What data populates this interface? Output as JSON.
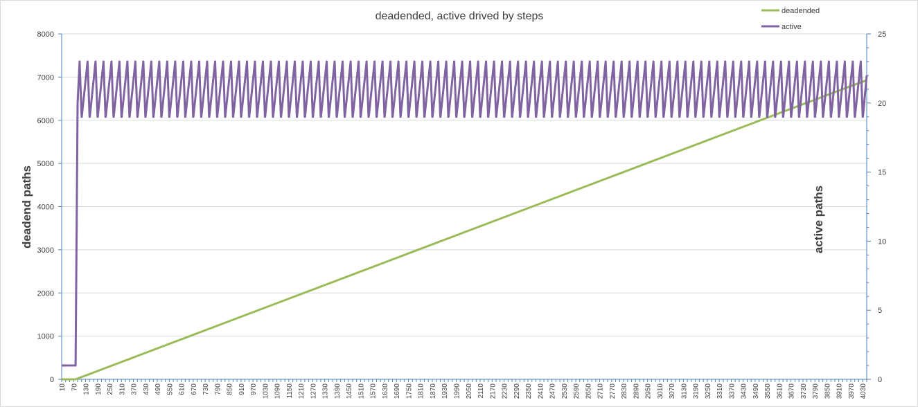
{
  "chart_data": {
    "type": "line",
    "title": "deadended, active drived by steps",
    "ylabel": "deadend paths",
    "y2label": "active paths",
    "ylim": [
      0,
      8000
    ],
    "y2lim": [
      0,
      25
    ],
    "yticks": [
      "0",
      "1000",
      "2000",
      "3000",
      "4000",
      "5000",
      "6000",
      "7000",
      "8000"
    ],
    "y2ticks": [
      "0",
      "5",
      "10",
      "15",
      "20",
      "25"
    ],
    "x_start": 10,
    "x_end": 4050,
    "x_step": 10,
    "x_tick_labels": [
      "10",
      "70",
      "130",
      "190",
      "250",
      "310",
      "370",
      "430",
      "490",
      "550",
      "610",
      "670",
      "730",
      "790",
      "850",
      "910",
      "970",
      "1030",
      "1090",
      "1150",
      "1210",
      "1270",
      "1330",
      "1390",
      "1450",
      "1510",
      "1570",
      "1630",
      "1690",
      "1750",
      "1810",
      "1870",
      "1930",
      "1990",
      "2050",
      "2110",
      "2170",
      "2230",
      "2290",
      "2350",
      "2410",
      "2470",
      "2530",
      "2590",
      "2650",
      "2710",
      "2770",
      "2830",
      "2890",
      "2950",
      "3010",
      "3070",
      "3130",
      "3190",
      "3250",
      "3310",
      "3370",
      "3430",
      "3490",
      "3550",
      "3610",
      "3670",
      "3730",
      "3790",
      "3850",
      "3910",
      "3970",
      "4030"
    ],
    "grid": true,
    "legend_position": "top-right",
    "series": [
      {
        "name": "deadended",
        "axis": "left",
        "color": "#9bbb59",
        "points": [
          [
            10,
            0
          ],
          [
            80,
            0
          ],
          [
            4050,
            6930
          ]
        ]
      },
      {
        "name": "active",
        "axis": "right",
        "color": "#8064a2",
        "initial_segment": [
          [
            10,
            1
          ],
          [
            80,
            1
          ],
          [
            90,
            20
          ]
        ],
        "oscillation": {
          "min": 19,
          "max": 23,
          "period_steps": 40,
          "until": 4050,
          "final_value": 22
        }
      }
    ]
  }
}
